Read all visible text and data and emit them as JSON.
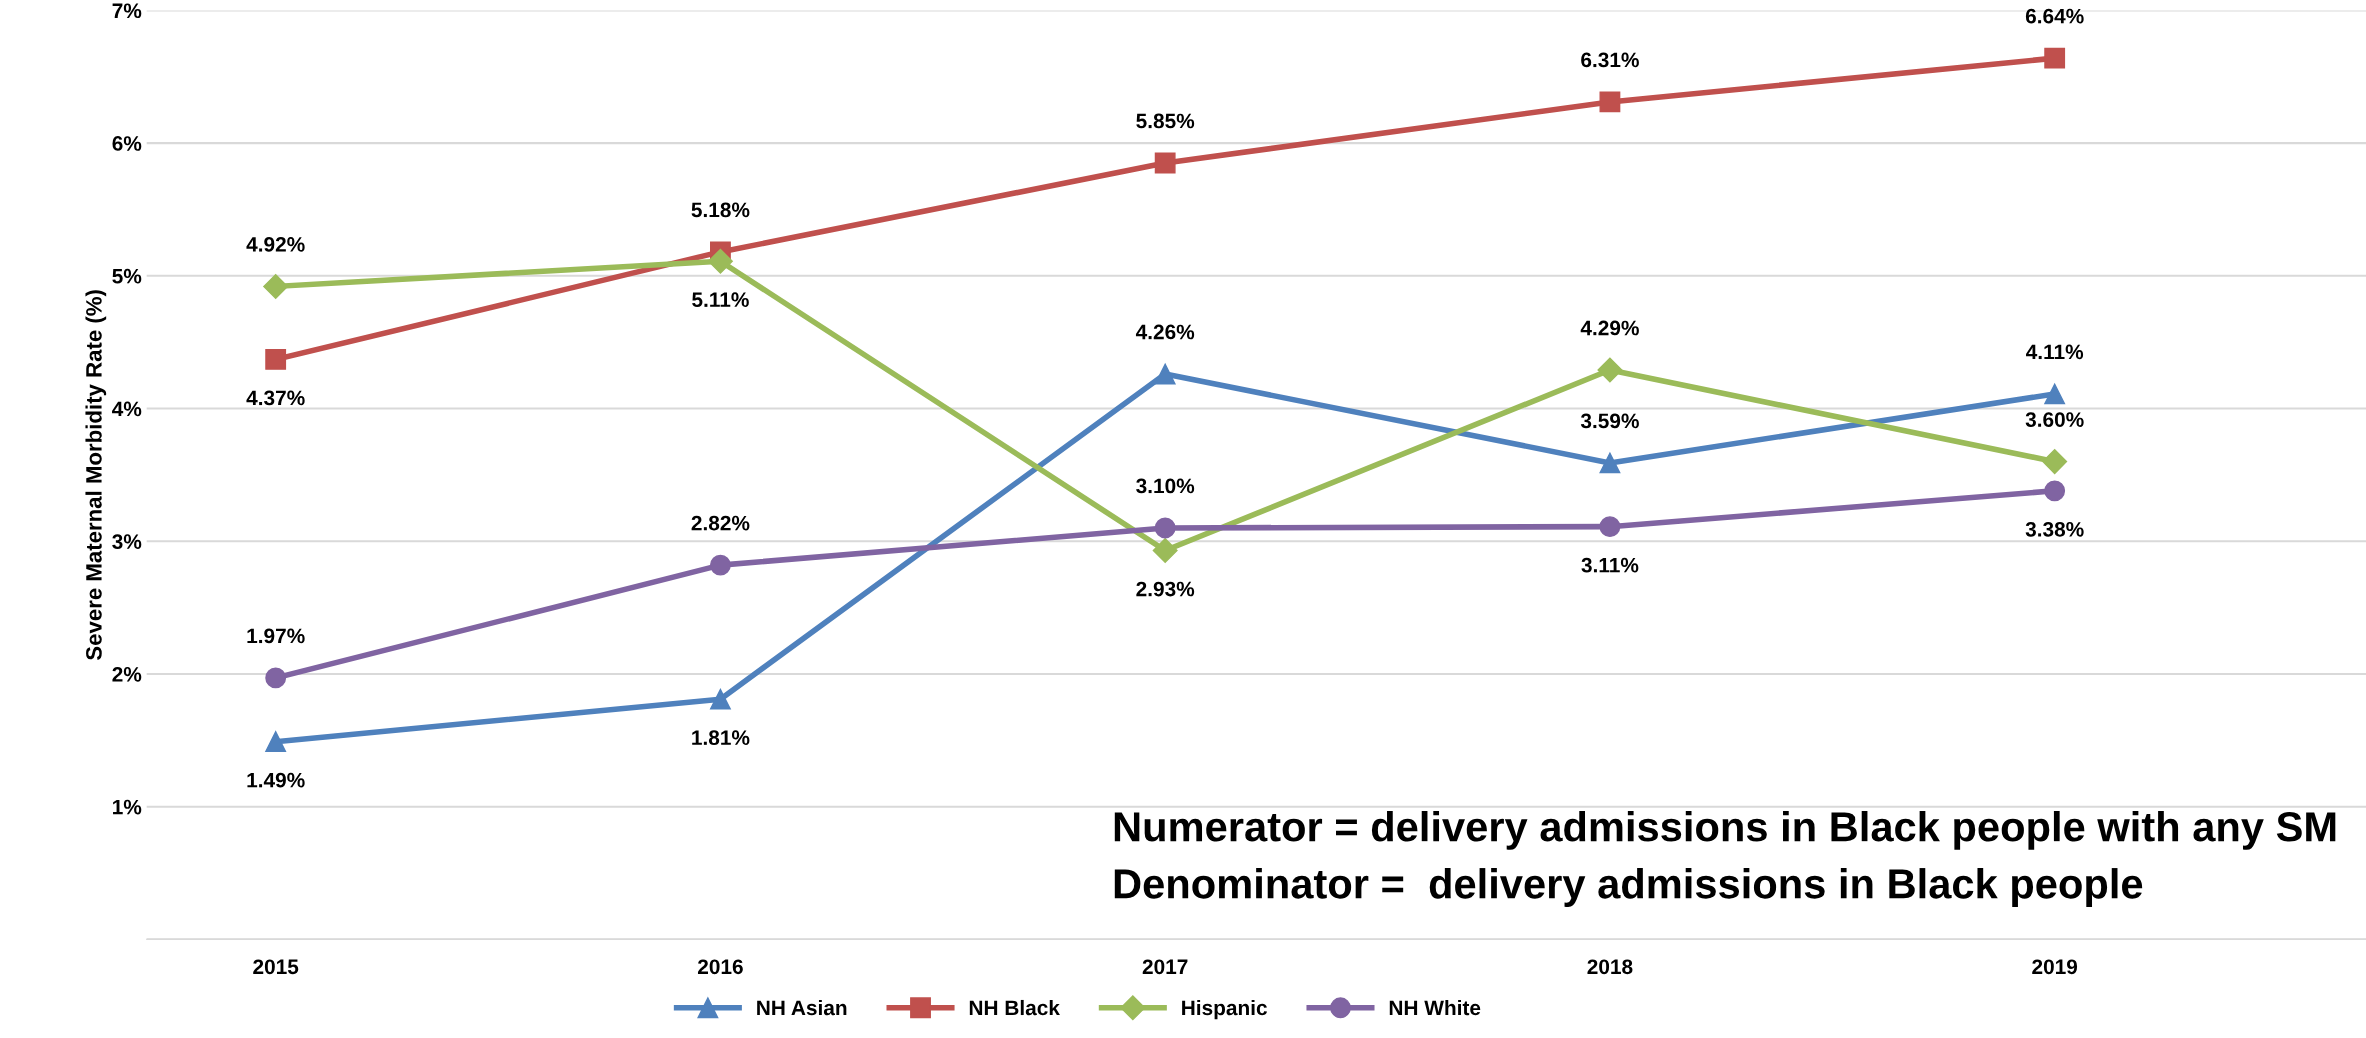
{
  "chart_data": {
    "type": "line",
    "ylabel": "Severe Maternal Morbidity Rate (%)",
    "categories": [
      "2015",
      "2016",
      "2017",
      "2018",
      "2019"
    ],
    "series": [
      {
        "name": "NH Asian",
        "color": "#4f81bd",
        "marker": "triangle",
        "values": [
          1.49,
          1.81,
          4.26,
          3.59,
          4.11
        ],
        "value_labels": [
          "1.49%",
          "1.81%",
          "4.26%",
          "3.59%",
          "4.11%"
        ]
      },
      {
        "name": "NH Black",
        "color": "#c0504d",
        "marker": "square",
        "values": [
          4.37,
          5.18,
          5.85,
          6.31,
          6.64
        ],
        "value_labels": [
          "4.37%",
          "5.18%",
          "5.85%",
          "6.31%",
          "6.64%"
        ]
      },
      {
        "name": "Hispanic",
        "color": "#9bbb59",
        "marker": "diamond",
        "values": [
          4.92,
          5.11,
          2.93,
          4.29,
          3.6
        ],
        "value_labels": [
          "4.92%",
          "5.11%",
          "2.93%",
          "4.29%",
          "3.60%"
        ]
      },
      {
        "name": "NH White",
        "color": "#8064a2",
        "marker": "circle",
        "values": [
          1.97,
          2.82,
          3.1,
          3.11,
          3.38
        ],
        "value_labels": [
          "1.97%",
          "2.82%",
          "3.10%",
          "3.11%",
          "3.38%"
        ]
      }
    ],
    "ylim": [
      0,
      7
    ],
    "yticks": [
      {
        "value": 0,
        "label": null
      },
      {
        "value": 1,
        "label": "1%"
      },
      {
        "value": 2,
        "label": "2%"
      },
      {
        "value": 3,
        "label": "3%"
      },
      {
        "value": 4,
        "label": "4%"
      },
      {
        "value": 5,
        "label": "5%"
      },
      {
        "value": 6,
        "label": "6%"
      },
      {
        "value": 7,
        "label": "7%"
      }
    ],
    "grid": "y",
    "legend": "bottom",
    "line_style": "solid",
    "annotations": [
      "Numerator = delivery admissions in Black people with any SM",
      "Denominator =  delivery admissions in Black people"
    ]
  }
}
